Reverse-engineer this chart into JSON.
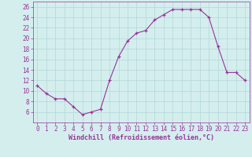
{
  "x": [
    0,
    1,
    2,
    3,
    4,
    5,
    6,
    7,
    8,
    9,
    10,
    11,
    12,
    13,
    14,
    15,
    16,
    17,
    18,
    19,
    20,
    21,
    22,
    23
  ],
  "y": [
    11,
    9.5,
    8.5,
    8.5,
    7.0,
    5.5,
    6.0,
    6.5,
    12.0,
    16.5,
    19.5,
    21.0,
    21.5,
    23.5,
    24.5,
    25.5,
    25.5,
    25.5,
    25.5,
    24.0,
    18.5,
    13.5,
    13.5,
    12.0
  ],
  "line_color": "#993399",
  "marker_color": "#993399",
  "bg_color": "#d4eeee",
  "grid_color": "#b8dada",
  "xlabel": "Windchill (Refroidissement éolien,°C)",
  "ylim": [
    4,
    27
  ],
  "xlim": [
    -0.5,
    23.5
  ],
  "yticks": [
    6,
    8,
    10,
    12,
    14,
    16,
    18,
    20,
    22,
    24,
    26
  ],
  "xticks": [
    0,
    1,
    2,
    3,
    4,
    5,
    6,
    7,
    8,
    9,
    10,
    11,
    12,
    13,
    14,
    15,
    16,
    17,
    18,
    19,
    20,
    21,
    22,
    23
  ],
  "tick_color": "#993399",
  "label_fontsize": 6.0,
  "tick_fontsize": 5.5
}
